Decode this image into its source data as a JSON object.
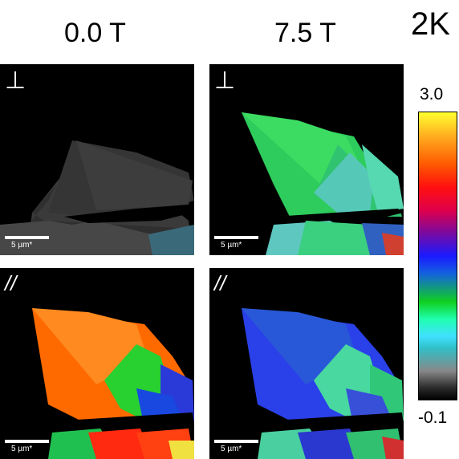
{
  "columns": {
    "left": "0.0 T",
    "right": "7.5 T"
  },
  "temperature": "2K",
  "rows": {
    "top_symbol": "⊥",
    "bottom_symbol": "//"
  },
  "scale_bar": "5 µm*",
  "colorbar": {
    "max": "3.0",
    "min": "-0.1",
    "colors": [
      "#ffff30",
      "#ffb020",
      "#ff5a00",
      "#ff1010",
      "#e0004a",
      "#7a0aa0",
      "#1a1aff",
      "#1460e0",
      "#10d020",
      "#20ffb0",
      "#40e0ff",
      "#30c0c8",
      "#888888",
      "#2a2a2a",
      "#000000"
    ]
  }
}
